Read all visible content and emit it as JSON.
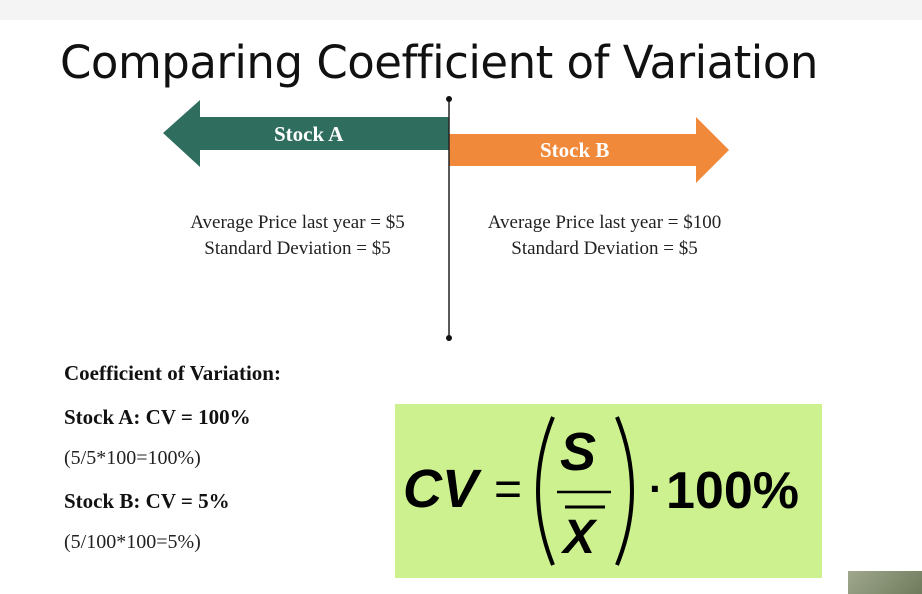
{
  "title": "Comparing Coefficient of Variation",
  "stock_a": {
    "label": "Stock A",
    "avg_price": "Average Price last year  = $5",
    "std_dev": "Standard Deviation = $5",
    "color": "#2f6e5f"
  },
  "stock_b": {
    "label": "Stock B",
    "avg_price": "Average Price last year = $100",
    "std_dev": "Standard Deviation = $5",
    "color": "#f08a3a"
  },
  "cv_section": {
    "heading": "Coefficient of Variation:",
    "stock_a_cv": "Stock A:  CV = 100%",
    "stock_a_calc": "(5/5*100=100%)",
    "stock_b_cv": "Stock B:  CV =  5%",
    "stock_b_calc": "(5/100*100=5%)"
  },
  "formula": {
    "lhs": "CV",
    "equals": "=",
    "numerator": "S",
    "denominator": "X",
    "dot": "·",
    "percent": "100%",
    "background": "#ccf18e"
  }
}
